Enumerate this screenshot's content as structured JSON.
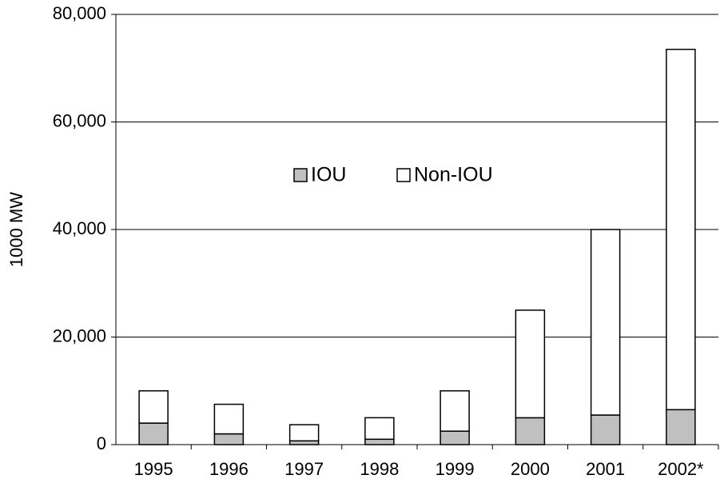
{
  "chart_data": {
    "type": "stacked_bar",
    "y_label": "1000 MW",
    "categories": [
      "1995",
      "1996",
      "1997",
      "1998",
      "1999",
      "2000",
      "2001",
      "2002*"
    ],
    "series": [
      {
        "name": "IOU",
        "color": "#c0c0c0",
        "values": [
          4000,
          2000,
          700,
          1000,
          2500,
          5000,
          5500,
          6500
        ]
      },
      {
        "name": "Non-IOU",
        "color": "#ffffff",
        "values": [
          6000,
          5500,
          3000,
          4000,
          7500,
          20000,
          34500,
          67000
        ]
      }
    ],
    "ylim": [
      0,
      80000
    ],
    "yticks": [
      0,
      {
        "value": 20000,
        "label": "20,000"
      },
      {
        "value": 40000,
        "label": "40,000"
      },
      {
        "value": 60000,
        "label": "60,000"
      },
      {
        "value": 80000,
        "label": "80,000"
      }
    ],
    "grid": true
  }
}
